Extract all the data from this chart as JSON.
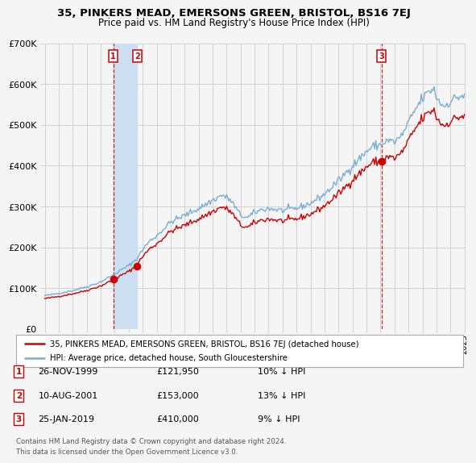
{
  "title1": "35, PINKERS MEAD, EMERSONS GREEN, BRISTOL, BS16 7EJ",
  "title2": "Price paid vs. HM Land Registry's House Price Index (HPI)",
  "legend_line1": "35, PINKERS MEAD, EMERSONS GREEN, BRISTOL, BS16 7EJ (detached house)",
  "legend_line2": "HPI: Average price, detached house, South Gloucestershire",
  "sale1_label": "26-NOV-1999",
  "sale1_price": 121950,
  "sale1_hpi_pct": "10% ↓ HPI",
  "sale1_year": 1999.9,
  "sale2_label": "10-AUG-2001",
  "sale2_price": 153000,
  "sale2_hpi_pct": "13% ↓ HPI",
  "sale2_year": 2001.6,
  "sale3_label": "25-JAN-2019",
  "sale3_price": 410000,
  "sale3_hpi_pct": "9% ↓ HPI",
  "sale3_year": 2019.07,
  "footnote1": "Contains HM Land Registry data © Crown copyright and database right 2024.",
  "footnote2": "This data is licensed under the Open Government Licence v3.0.",
  "red_color": "#cc0000",
  "blue_color": "#7aadd4",
  "background_color": "#f5f5f5",
  "grid_color": "#cccccc",
  "shade_color": "#ccdff0",
  "ylim": [
    0,
    700000
  ],
  "yticks": [
    0,
    100000,
    200000,
    300000,
    400000,
    500000,
    600000,
    700000
  ],
  "start_year": 1995,
  "end_year": 2025
}
